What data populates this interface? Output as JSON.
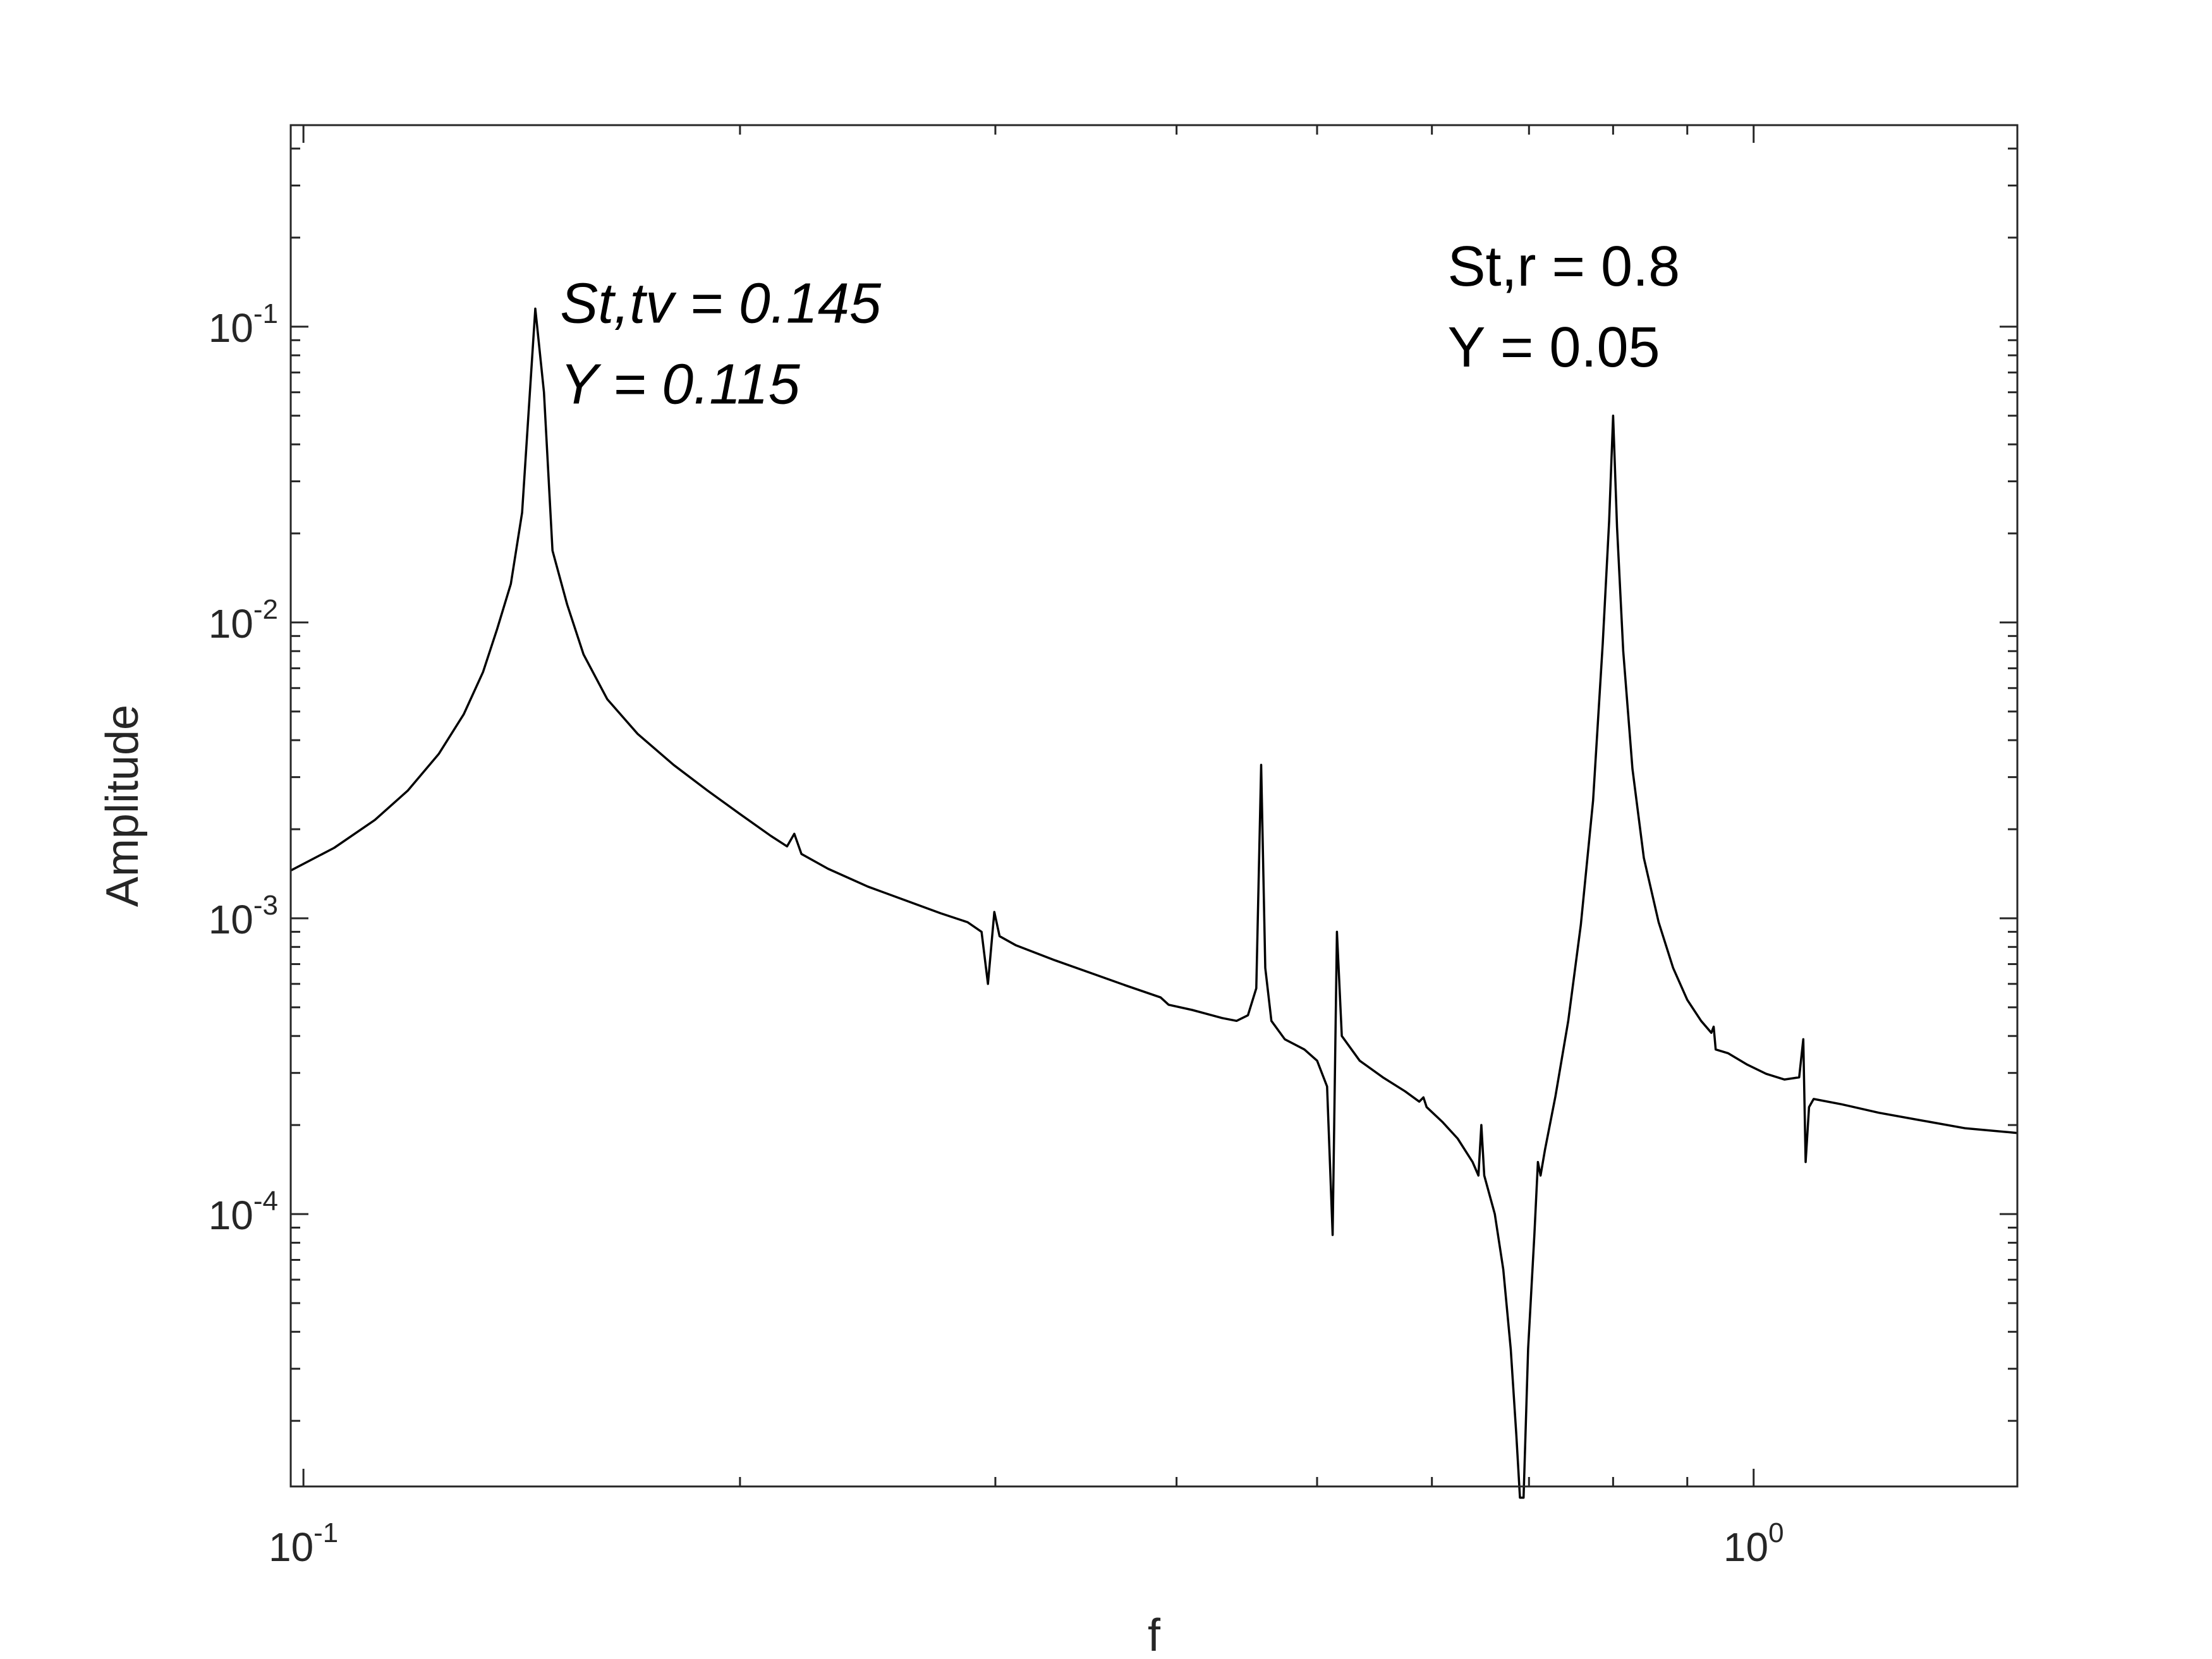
{
  "chart_data": {
    "type": "line",
    "title": "",
    "xlabel": "f",
    "ylabel": "Amplitude",
    "xscale": "log",
    "yscale": "log",
    "xlim": [
      0.098,
      1.52
    ],
    "ylim": [
      1.2e-05,
      0.48
    ],
    "grid": false,
    "x_ticks": [
      {
        "value": 0.1,
        "base": "10",
        "exp": "-1"
      },
      {
        "value": 1.0,
        "base": "10",
        "exp": "0"
      }
    ],
    "y_ticks": [
      {
        "value": 0.1,
        "base": "10",
        "exp": "-1"
      },
      {
        "value": 0.01,
        "base": "10",
        "exp": "-2"
      },
      {
        "value": 0.001,
        "base": "10",
        "exp": "-3"
      },
      {
        "value": 0.0001,
        "base": "10",
        "exp": "-4"
      }
    ],
    "annotations": [
      {
        "id": "tv",
        "line1": "St,tv = 0.145",
        "line2": "Y = 0.115",
        "italic": true,
        "x": 0.156,
        "y": 0.145
      },
      {
        "id": "r",
        "line1": "St,r = 0.8",
        "line2": "Y = 0.05",
        "italic": false,
        "x": 0.67,
        "y": 0.118
      }
    ],
    "series": [
      {
        "color": "#000000",
        "points": [
          [
            0.098,
            0.00145
          ],
          [
            0.105,
            0.00173
          ],
          [
            0.112,
            0.00215
          ],
          [
            0.118,
            0.0027
          ],
          [
            0.124,
            0.0036
          ],
          [
            0.129,
            0.0049
          ],
          [
            0.133,
            0.0068
          ],
          [
            0.136,
            0.0095
          ],
          [
            0.139,
            0.0135
          ],
          [
            0.1415,
            0.0235
          ],
          [
            0.1445,
            0.115
          ],
          [
            0.1465,
            0.06
          ],
          [
            0.1485,
            0.0175
          ],
          [
            0.152,
            0.0115
          ],
          [
            0.156,
            0.0078
          ],
          [
            0.162,
            0.0055
          ],
          [
            0.17,
            0.0042
          ],
          [
            0.18,
            0.0033
          ],
          [
            0.19,
            0.0027
          ],
          [
            0.2,
            0.00225
          ],
          [
            0.21,
            0.0019
          ],
          [
            0.2155,
            0.00175
          ],
          [
            0.218,
            0.00193
          ],
          [
            0.2205,
            0.00165
          ],
          [
            0.23,
            0.00147
          ],
          [
            0.245,
            0.00128
          ],
          [
            0.26,
            0.00115
          ],
          [
            0.275,
            0.00104
          ],
          [
            0.287,
            0.00097
          ],
          [
            0.2935,
            0.0009
          ],
          [
            0.2965,
            0.0006
          ],
          [
            0.2995,
            0.00105
          ],
          [
            0.302,
            0.00087
          ],
          [
            0.31,
            0.00081
          ],
          [
            0.33,
            0.00072
          ],
          [
            0.35,
            0.00065
          ],
          [
            0.37,
            0.00059
          ],
          [
            0.39,
            0.00054
          ],
          [
            0.395,
            0.00051
          ],
          [
            0.41,
            0.00049
          ],
          [
            0.43,
            0.00046
          ],
          [
            0.44,
            0.00045
          ],
          [
            0.448,
            0.00047
          ],
          [
            0.454,
            0.00058
          ],
          [
            0.4575,
            0.0033
          ],
          [
            0.4605,
            0.00068
          ],
          [
            0.465,
            0.00045
          ],
          [
            0.475,
            0.00039
          ],
          [
            0.49,
            0.00036
          ],
          [
            0.5,
            0.00033
          ],
          [
            0.508,
            0.00027
          ],
          [
            0.5125,
            8.5e-05
          ],
          [
            0.516,
            0.0009
          ],
          [
            0.52,
            0.0004
          ],
          [
            0.535,
            0.00033
          ],
          [
            0.555,
            0.00029
          ],
          [
            0.575,
            0.00026
          ],
          [
            0.588,
            0.00024
          ],
          [
            0.592,
            0.000248
          ],
          [
            0.595,
            0.00023
          ],
          [
            0.61,
            0.000205
          ],
          [
            0.625,
            0.00018
          ],
          [
            0.64,
            0.00015
          ],
          [
            0.646,
            0.000135
          ],
          [
            0.649,
            0.0002
          ],
          [
            0.652,
            0.000135
          ],
          [
            0.663,
            0.0001
          ],
          [
            0.672,
            6.5e-05
          ],
          [
            0.68,
            3.5e-05
          ],
          [
            0.686,
            1.8e-05
          ],
          [
            0.69,
            1.1e-05
          ],
          [
            0.694,
            1.1e-05
          ],
          [
            0.699,
            3.5e-05
          ],
          [
            0.706,
            8.5e-05
          ],
          [
            0.71,
            0.00015
          ],
          [
            0.713,
            0.000135
          ],
          [
            0.718,
            0.000165
          ],
          [
            0.73,
            0.00025
          ],
          [
            0.745,
            0.00045
          ],
          [
            0.76,
            0.00095
          ],
          [
            0.775,
            0.0025
          ],
          [
            0.787,
            0.0085
          ],
          [
            0.795,
            0.022
          ],
          [
            0.8,
            0.05
          ],
          [
            0.805,
            0.021
          ],
          [
            0.813,
            0.008
          ],
          [
            0.825,
            0.0032
          ],
          [
            0.84,
            0.0016
          ],
          [
            0.86,
            0.00097
          ],
          [
            0.88,
            0.00068
          ],
          [
            0.9,
            0.00053
          ],
          [
            0.92,
            0.00045
          ],
          [
            0.935,
            0.00041
          ],
          [
            0.9385,
            0.00043
          ],
          [
            0.9415,
            0.00036
          ],
          [
            0.96,
            0.00035
          ],
          [
            0.99,
            0.00032
          ],
          [
            1.02,
            0.000298
          ],
          [
            1.05,
            0.000285
          ],
          [
            1.075,
            0.00029
          ],
          [
            1.082,
            0.00039
          ],
          [
            1.086,
            0.00015
          ],
          [
            1.092,
            0.00023
          ],
          [
            1.1,
            0.000245
          ],
          [
            1.15,
            0.000235
          ],
          [
            1.22,
            0.00022
          ],
          [
            1.3,
            0.000208
          ],
          [
            1.4,
            0.000195
          ],
          [
            1.52,
            0.000188
          ]
        ]
      }
    ]
  }
}
